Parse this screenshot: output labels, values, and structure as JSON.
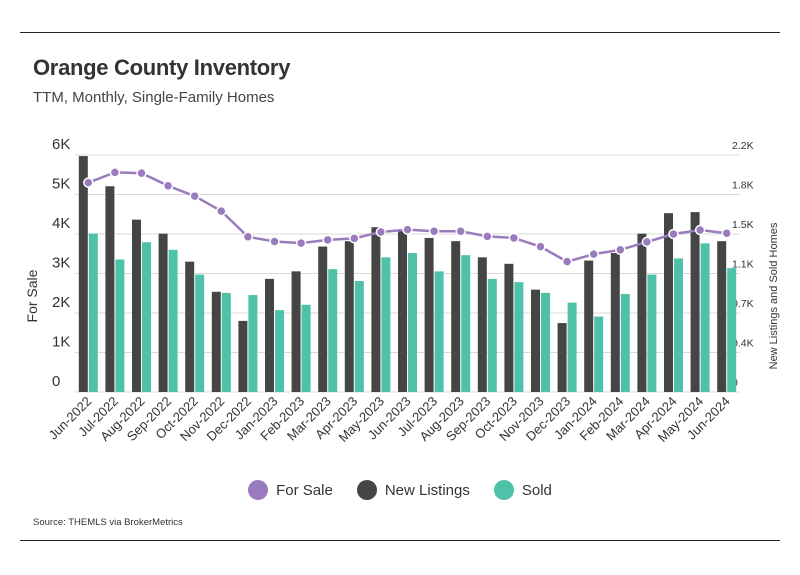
{
  "header": {
    "title": "Orange County Inventory",
    "subtitle": "TTM, Monthly, Single-Family Homes"
  },
  "footer": {
    "source": "Source:  THEMLS via BrokerMetrics"
  },
  "colors": {
    "for_sale": "#9a7bbd",
    "new_listings": "#454545",
    "sold": "#4fc1a9",
    "grid": "#d9d9d9",
    "text": "#333333"
  },
  "chart_data": {
    "type": "bar",
    "categories": [
      "Jun-2022",
      "Jul-2022",
      "Aug-2022",
      "Sep-2022",
      "Oct-2022",
      "Nov-2022",
      "Dec-2022",
      "Jan-2023",
      "Feb-2023",
      "Mar-2023",
      "Apr-2023",
      "May-2023",
      "Jun-2023",
      "Jul-2023",
      "Aug-2023",
      "Sep-2023",
      "Oct-2023",
      "Nov-2023",
      "Dec-2023",
      "Jan-2024",
      "Feb-2024",
      "Mar-2024",
      "Apr-2024",
      "May-2024",
      "Jun-2024"
    ],
    "ylabel_left": "For Sale",
    "ylabel_right": "New Listings and Sold Homes",
    "left_axis": {
      "min": 0,
      "max": 6000,
      "ticks": [
        0,
        1000,
        2000,
        3000,
        4000,
        5000,
        6000
      ],
      "tick_labels": [
        "0",
        "1K",
        "2K",
        "3K",
        "4K",
        "5K",
        "6K"
      ]
    },
    "right_axis": {
      "min": 0,
      "max": 2200,
      "ticks": [
        0,
        400,
        700,
        1100,
        1500,
        1800,
        2200
      ],
      "tick_labels": [
        "0",
        "0.4K",
        "0.7K",
        "1.1K",
        "1.5K",
        "1.8K",
        "2.2K"
      ]
    },
    "grid": true,
    "legend_position": "bottom",
    "series": [
      {
        "name": "For Sale",
        "type": "line",
        "axis": "left",
        "values": [
          5300,
          5560,
          5540,
          5220,
          4960,
          4580,
          3930,
          3810,
          3770,
          3850,
          3890,
          4050,
          4110,
          4070,
          4070,
          3940,
          3900,
          3680,
          3300,
          3490,
          3600,
          3800,
          4000,
          4100,
          4020
        ]
      },
      {
        "name": "New Listings",
        "type": "bar",
        "axis": "right",
        "values": [
          2190,
          1910,
          1600,
          1470,
          1210,
          930,
          660,
          1050,
          1120,
          1350,
          1400,
          1530,
          1510,
          1430,
          1400,
          1250,
          1190,
          950,
          640,
          1220,
          1290,
          1470,
          1660,
          1670,
          1400
        ]
      },
      {
        "name": "Sold",
        "type": "bar",
        "axis": "right",
        "values": [
          1470,
          1230,
          1390,
          1320,
          1090,
          920,
          900,
          760,
          810,
          1140,
          1030,
          1250,
          1290,
          1120,
          1270,
          1050,
          1020,
          920,
          830,
          700,
          910,
          1090,
          1240,
          1380,
          1150
        ]
      }
    ]
  }
}
